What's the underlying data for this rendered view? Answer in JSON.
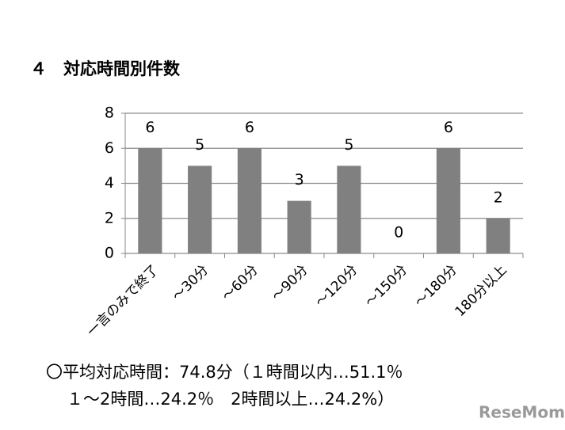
{
  "chart_data": {
    "type": "bar",
    "title": "４　対応時間別件数",
    "categories": [
      "一言のみで終了",
      "～30分",
      "～60分",
      "～90分",
      "～120分",
      "～150分",
      "～180分",
      "180分以上"
    ],
    "values": [
      6,
      5,
      6,
      3,
      5,
      0,
      6,
      2
    ],
    "color": "#808080",
    "ylim": [
      0,
      8
    ],
    "yticks": [
      0,
      2,
      4,
      6,
      8
    ],
    "grid": true
  },
  "footer": [
    "〇平均対応時間：74.8分（１時間以内…51.1％",
    "１～2時間…24.2％　2時間以上…24.2%）"
  ],
  "watermark": "ReseMom"
}
